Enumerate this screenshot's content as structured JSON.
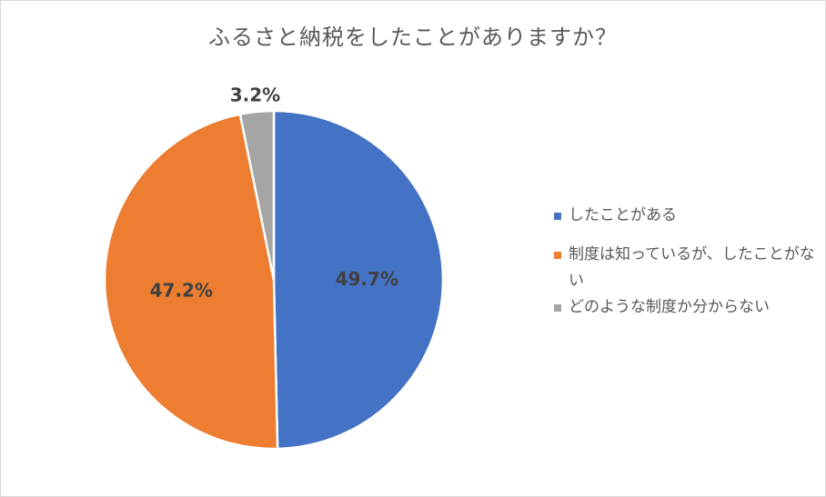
{
  "chart_data": {
    "type": "pie",
    "title": "ふるさと納税をしたことがありますか？",
    "slices": [
      {
        "name": "したことがある",
        "value": 49.7,
        "label": "49.7%",
        "color": "#4472c4"
      },
      {
        "name": "制度は知っているが、したことがない",
        "value": 47.2,
        "label": "47.2%",
        "color": "#ed7d31"
      },
      {
        "name": "どのような制度か分からない",
        "value": 3.2,
        "label": "3.2%",
        "color": "#a5a5a5"
      }
    ],
    "legend_position": "right",
    "start_angle": "12 o'clock, clockwise"
  }
}
